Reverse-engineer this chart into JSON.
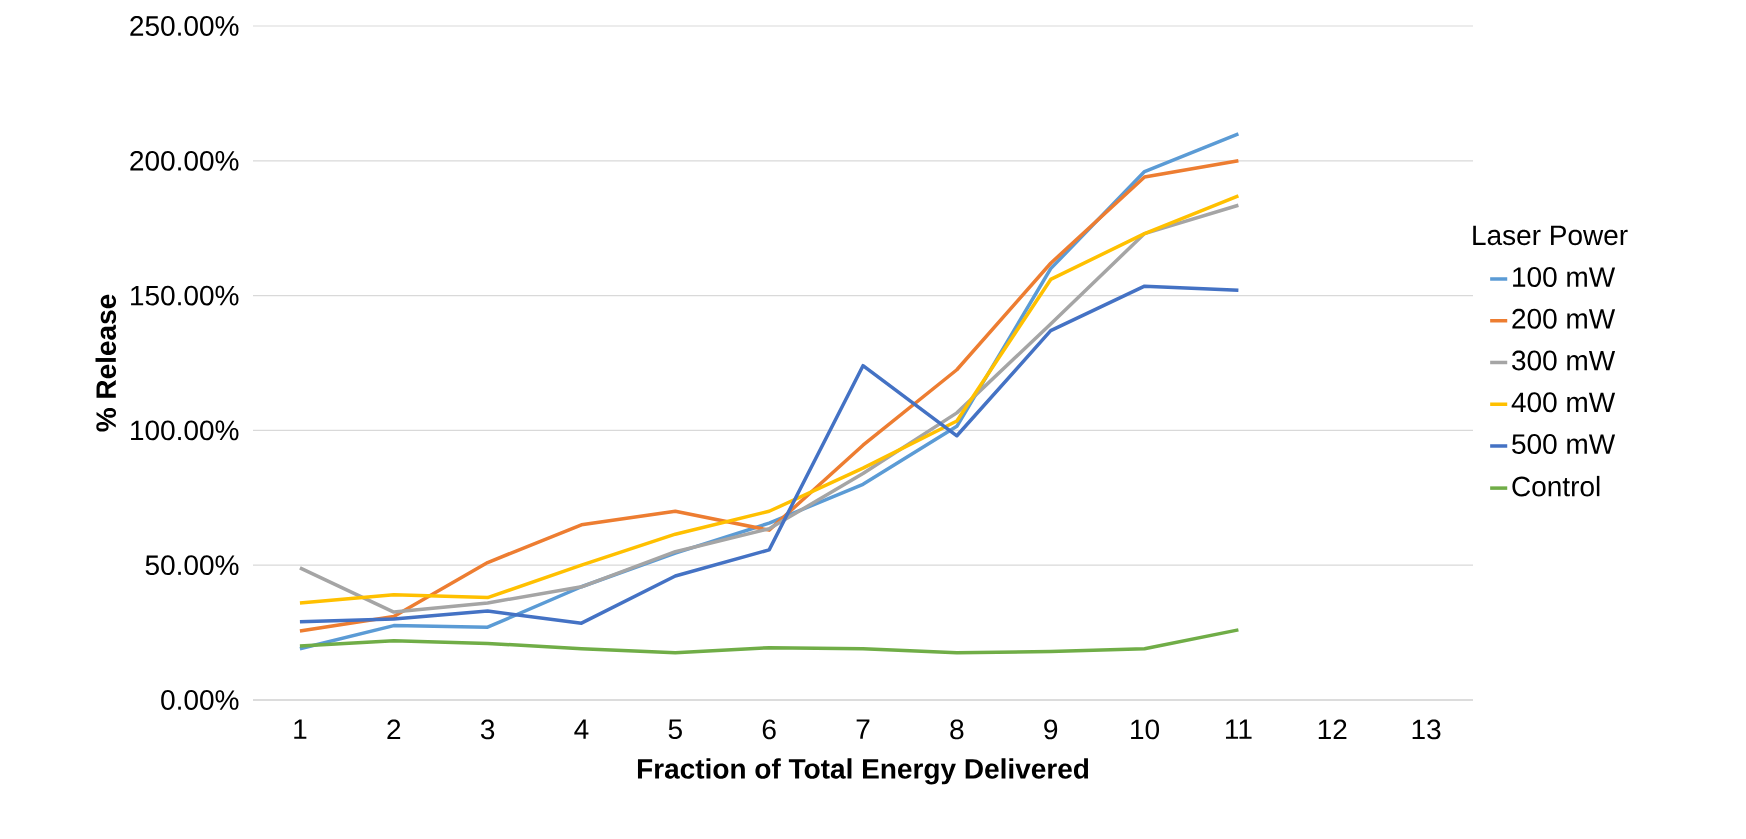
{
  "chart_data": {
    "type": "line",
    "xlabel": "Fraction of Total Energy Delivered",
    "ylabel": "% Release",
    "legend_title": "Laser Power",
    "categories": [
      "1",
      "2",
      "3",
      "4",
      "5",
      "6",
      "7",
      "8",
      "9",
      "10",
      "11",
      "12",
      "13"
    ],
    "series": [
      {
        "name": "100 mW",
        "color": "#5b9bd5",
        "values": [
          19,
          27.6,
          27,
          42,
          54.5,
          65.6,
          80,
          101.5,
          160,
          196,
          210,
          null,
          null
        ]
      },
      {
        "name": "200 mW",
        "color": "#ed7d31",
        "values": [
          25.6,
          31,
          51,
          65,
          70,
          63,
          94.5,
          122.5,
          162,
          194,
          200,
          null,
          null
        ]
      },
      {
        "name": "300 mW",
        "color": "#a5a5a5",
        "values": [
          49,
          32.6,
          36,
          42,
          55,
          63.5,
          84,
          106.5,
          139.5,
          173,
          183.5,
          null,
          null
        ]
      },
      {
        "name": "400 mW",
        "color": "#ffc000",
        "values": [
          36,
          39,
          38,
          50,
          61.5,
          70,
          86,
          103.5,
          156,
          173,
          187,
          null,
          null
        ]
      },
      {
        "name": "500 mW",
        "color": "#4472c4",
        "values": [
          29,
          30,
          33,
          28.5,
          46,
          55.7,
          124,
          98,
          137,
          153.5,
          152,
          null,
          null
        ]
      },
      {
        "name": "Control",
        "color": "#70ad47",
        "values": [
          20,
          22,
          21,
          19,
          17.5,
          19.4,
          19,
          17.5,
          18,
          19,
          26,
          null,
          null
        ]
      }
    ],
    "ylim": [
      0,
      250
    ],
    "yticks": [
      {
        "value": 0,
        "label": "0.00%"
      },
      {
        "value": 50,
        "label": "50.00%"
      },
      {
        "value": 100,
        "label": "100.00%"
      },
      {
        "value": 150,
        "label": "150.00%"
      },
      {
        "value": 200,
        "label": "200.00%"
      },
      {
        "value": 250,
        "label": "250.00%"
      }
    ],
    "grid": "y",
    "legend": "right"
  }
}
